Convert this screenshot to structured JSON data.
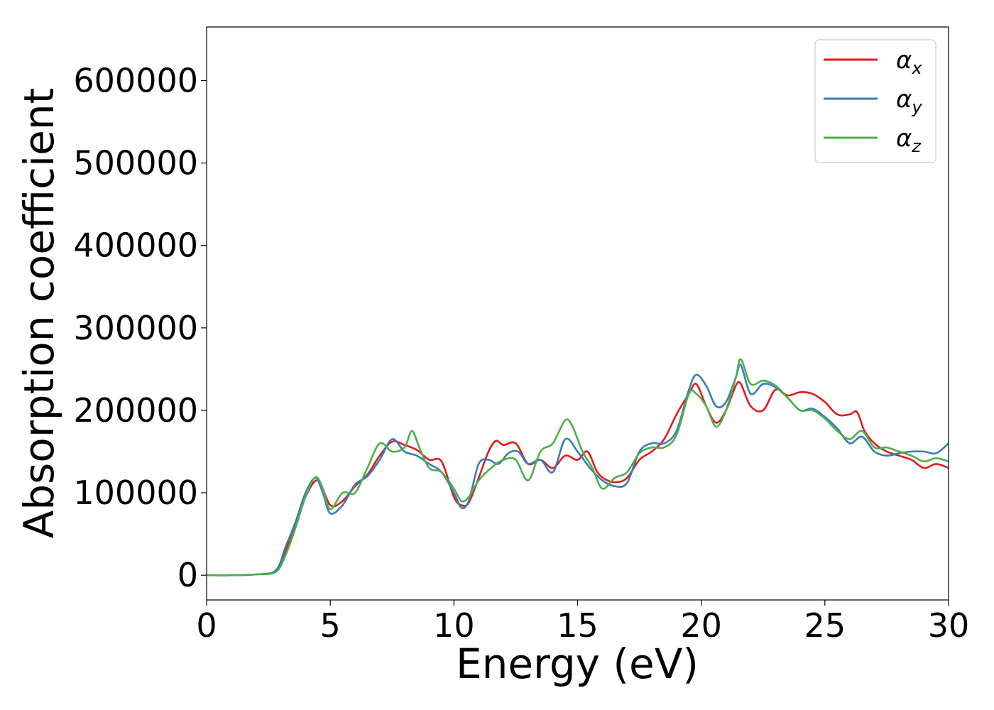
{
  "chart_data": {
    "type": "line",
    "title": "",
    "xlabel": "Energy (eV)",
    "ylabel": "Absorption coefficient",
    "xlim": [
      0,
      30
    ],
    "ylim": [
      -30000,
      665000
    ],
    "xticks": [
      0,
      5,
      10,
      15,
      20,
      25,
      30
    ],
    "yticks": [
      0,
      100000,
      200000,
      300000,
      400000,
      500000,
      600000
    ],
    "xtick_labels": [
      "0",
      "5",
      "10",
      "15",
      "20",
      "25",
      "30"
    ],
    "ytick_labels": [
      "0",
      "100000",
      "200000",
      "300000",
      "400000",
      "500000",
      "600000"
    ],
    "grid": false,
    "legend_position": "top-right",
    "series": [
      {
        "name": "αx",
        "base": "α",
        "sub": "x",
        "color": "#e41a1c",
        "points": [
          [
            0,
            0
          ],
          [
            1,
            0
          ],
          [
            2,
            1000
          ],
          [
            2.8,
            5000
          ],
          [
            3.2,
            30000
          ],
          [
            3.6,
            60000
          ],
          [
            4,
            95000
          ],
          [
            4.5,
            115000
          ],
          [
            5,
            85000
          ],
          [
            5.5,
            90000
          ],
          [
            6,
            108000
          ],
          [
            6.5,
            122000
          ],
          [
            7,
            145000
          ],
          [
            7.5,
            162000
          ],
          [
            8,
            158000
          ],
          [
            8.5,
            152000
          ],
          [
            9,
            140000
          ],
          [
            9.5,
            138000
          ],
          [
            10,
            95000
          ],
          [
            10.3,
            85000
          ],
          [
            10.6,
            88000
          ],
          [
            11,
            118000
          ],
          [
            11.4,
            150000
          ],
          [
            11.7,
            163000
          ],
          [
            12,
            158000
          ],
          [
            12.5,
            160000
          ],
          [
            13,
            135000
          ],
          [
            13.5,
            140000
          ],
          [
            14,
            130000
          ],
          [
            14.5,
            145000
          ],
          [
            15,
            140000
          ],
          [
            15.4,
            150000
          ],
          [
            15.8,
            125000
          ],
          [
            16.2,
            115000
          ],
          [
            16.6,
            113000
          ],
          [
            17,
            118000
          ],
          [
            17.5,
            140000
          ],
          [
            18,
            150000
          ],
          [
            18.5,
            165000
          ],
          [
            19,
            195000
          ],
          [
            19.5,
            220000
          ],
          [
            19.8,
            232000
          ],
          [
            20.2,
            205000
          ],
          [
            20.6,
            185000
          ],
          [
            21,
            200000
          ],
          [
            21.4,
            230000
          ],
          [
            21.6,
            232000
          ],
          [
            22,
            205000
          ],
          [
            22.5,
            200000
          ],
          [
            23,
            225000
          ],
          [
            23.5,
            218000
          ],
          [
            24,
            222000
          ],
          [
            24.5,
            220000
          ],
          [
            25,
            210000
          ],
          [
            25.5,
            195000
          ],
          [
            26,
            195000
          ],
          [
            26.3,
            198000
          ],
          [
            26.6,
            175000
          ],
          [
            27,
            160000
          ],
          [
            27.5,
            150000
          ],
          [
            28,
            145000
          ],
          [
            28.5,
            140000
          ],
          [
            29,
            130000
          ],
          [
            29.5,
            135000
          ],
          [
            30,
            130000
          ]
        ]
      },
      {
        "name": "αy",
        "base": "α",
        "sub": "y",
        "color": "#377eb8",
        "points": [
          [
            0,
            0
          ],
          [
            1,
            0
          ],
          [
            2,
            1000
          ],
          [
            2.8,
            6000
          ],
          [
            3.2,
            35000
          ],
          [
            3.6,
            65000
          ],
          [
            4,
            100000
          ],
          [
            4.4,
            118000
          ],
          [
            4.7,
            100000
          ],
          [
            5,
            75000
          ],
          [
            5.5,
            85000
          ],
          [
            6,
            110000
          ],
          [
            6.5,
            120000
          ],
          [
            7,
            140000
          ],
          [
            7.5,
            165000
          ],
          [
            8,
            150000
          ],
          [
            8.5,
            145000
          ],
          [
            9,
            135000
          ],
          [
            9.5,
            125000
          ],
          [
            10,
            100000
          ],
          [
            10.3,
            82000
          ],
          [
            10.6,
            90000
          ],
          [
            11,
            135000
          ],
          [
            11.4,
            140000
          ],
          [
            11.8,
            135000
          ],
          [
            12.2,
            148000
          ],
          [
            12.6,
            150000
          ],
          [
            13,
            135000
          ],
          [
            13.5,
            140000
          ],
          [
            14,
            125000
          ],
          [
            14.5,
            165000
          ],
          [
            15,
            150000
          ],
          [
            15.5,
            130000
          ],
          [
            16,
            115000
          ],
          [
            16.5,
            108000
          ],
          [
            17,
            112000
          ],
          [
            17.5,
            150000
          ],
          [
            18,
            160000
          ],
          [
            18.5,
            160000
          ],
          [
            19,
            175000
          ],
          [
            19.5,
            225000
          ],
          [
            19.8,
            243000
          ],
          [
            20.2,
            230000
          ],
          [
            20.6,
            205000
          ],
          [
            21,
            210000
          ],
          [
            21.4,
            240000
          ],
          [
            21.6,
            255000
          ],
          [
            22,
            220000
          ],
          [
            22.5,
            232000
          ],
          [
            23,
            228000
          ],
          [
            23.5,
            215000
          ],
          [
            24,
            200000
          ],
          [
            24.5,
            202000
          ],
          [
            25,
            192000
          ],
          [
            25.5,
            178000
          ],
          [
            26,
            160000
          ],
          [
            26.5,
            168000
          ],
          [
            27,
            150000
          ],
          [
            27.5,
            145000
          ],
          [
            28,
            148000
          ],
          [
            28.5,
            150000
          ],
          [
            29,
            150000
          ],
          [
            29.5,
            148000
          ],
          [
            30,
            160000
          ]
        ]
      },
      {
        "name": "αz",
        "base": "α",
        "sub": "z",
        "color": "#4daf4a",
        "points": [
          [
            0,
            0
          ],
          [
            1,
            0
          ],
          [
            2,
            1000
          ],
          [
            2.8,
            4000
          ],
          [
            3.2,
            25000
          ],
          [
            3.6,
            58000
          ],
          [
            4,
            95000
          ],
          [
            4.4,
            119000
          ],
          [
            4.7,
            105000
          ],
          [
            5,
            80000
          ],
          [
            5.5,
            100000
          ],
          [
            6,
            100000
          ],
          [
            6.5,
            130000
          ],
          [
            7,
            160000
          ],
          [
            7.5,
            150000
          ],
          [
            8,
            155000
          ],
          [
            8.3,
            175000
          ],
          [
            8.6,
            155000
          ],
          [
            9,
            130000
          ],
          [
            9.5,
            125000
          ],
          [
            10,
            105000
          ],
          [
            10.3,
            90000
          ],
          [
            10.6,
            95000
          ],
          [
            11,
            115000
          ],
          [
            11.5,
            130000
          ],
          [
            12,
            140000
          ],
          [
            12.5,
            140000
          ],
          [
            13,
            115000
          ],
          [
            13.5,
            150000
          ],
          [
            14,
            160000
          ],
          [
            14.5,
            188000
          ],
          [
            14.8,
            180000
          ],
          [
            15.2,
            150000
          ],
          [
            15.6,
            130000
          ],
          [
            16,
            105000
          ],
          [
            16.5,
            118000
          ],
          [
            17,
            125000
          ],
          [
            17.5,
            148000
          ],
          [
            18,
            155000
          ],
          [
            18.5,
            155000
          ],
          [
            19,
            170000
          ],
          [
            19.5,
            220000
          ],
          [
            19.8,
            220000
          ],
          [
            20.2,
            205000
          ],
          [
            20.6,
            180000
          ],
          [
            21,
            200000
          ],
          [
            21.4,
            240000
          ],
          [
            21.6,
            262000
          ],
          [
            22,
            232000
          ],
          [
            22.5,
            236000
          ],
          [
            23,
            230000
          ],
          [
            23.5,
            215000
          ],
          [
            24,
            200000
          ],
          [
            24.5,
            200000
          ],
          [
            25,
            190000
          ],
          [
            25.5,
            175000
          ],
          [
            26,
            165000
          ],
          [
            26.5,
            175000
          ],
          [
            27,
            155000
          ],
          [
            27.5,
            155000
          ],
          [
            28,
            150000
          ],
          [
            28.5,
            145000
          ],
          [
            29,
            138000
          ],
          [
            29.5,
            142000
          ],
          [
            30,
            138000
          ]
        ]
      }
    ]
  }
}
